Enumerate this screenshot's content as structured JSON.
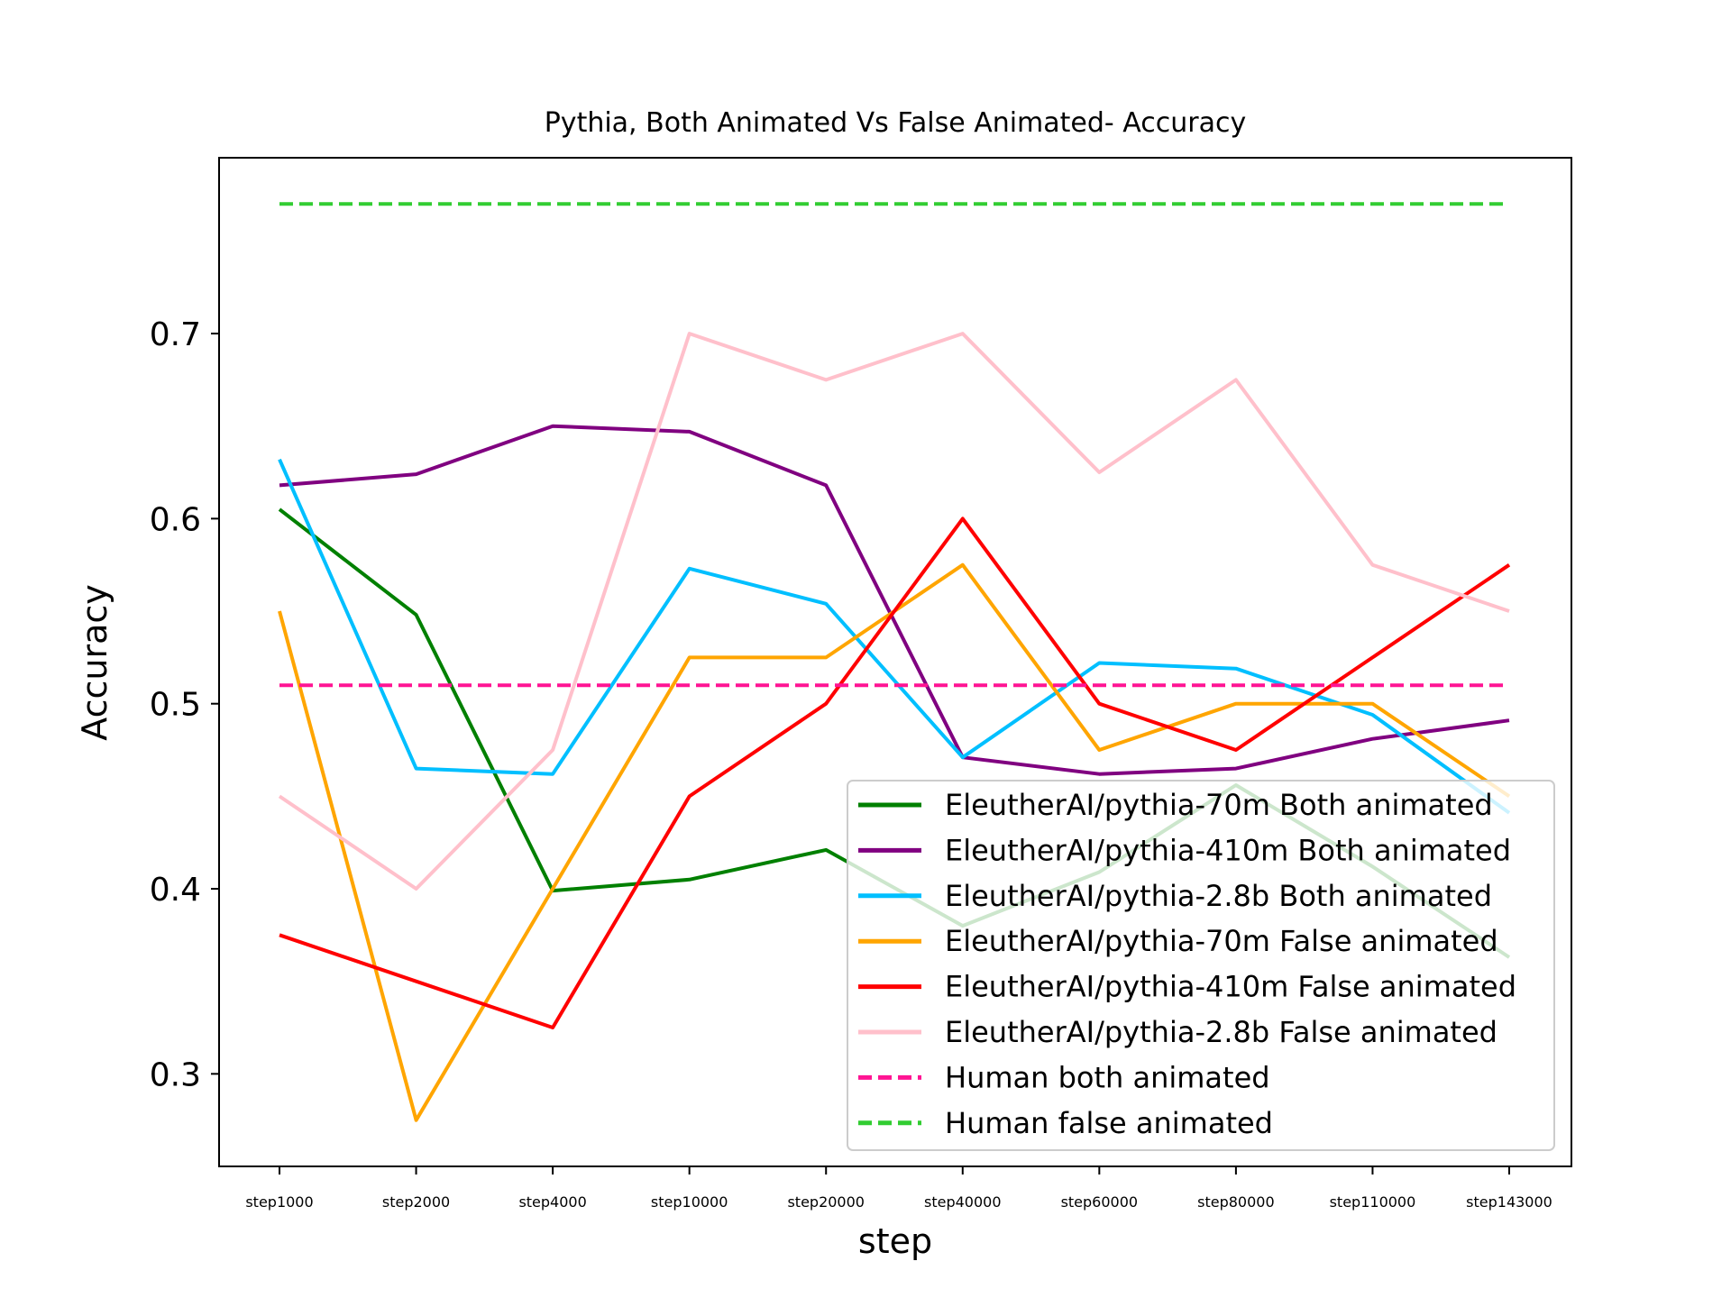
{
  "chart_data": {
    "type": "line",
    "title": "Pythia, Both Animated Vs False Animated- Accuracy",
    "xlabel": "step",
    "ylabel": "Accuracy",
    "categories": [
      "step1000",
      "step2000",
      "step4000",
      "step10000",
      "step20000",
      "step40000",
      "step60000",
      "step80000",
      "step110000",
      "step143000"
    ],
    "ylim": [
      0.25,
      0.795
    ],
    "yticks": [
      0.3,
      0.4,
      0.5,
      0.6,
      0.7
    ],
    "ytick_labels": [
      "0.3",
      "0.4",
      "0.5",
      "0.6",
      "0.7"
    ],
    "legend_position": "lower-right",
    "grid": false,
    "series": [
      {
        "name": "EleutherAI/pythia-70m Both animated",
        "color": "#008000",
        "dashed": false,
        "values": [
          0.605,
          0.548,
          0.399,
          0.405,
          0.421,
          0.38,
          0.409,
          0.456,
          0.412,
          0.363
        ]
      },
      {
        "name": "EleutherAI/pythia-410m Both animated",
        "color": "#800080",
        "dashed": false,
        "values": [
          0.618,
          0.624,
          0.65,
          0.647,
          0.618,
          0.471,
          0.462,
          0.465,
          0.481,
          0.491
        ]
      },
      {
        "name": "EleutherAI/pythia-2.8b Both animated",
        "color": "#00bfff",
        "dashed": false,
        "values": [
          0.632,
          0.465,
          0.462,
          0.573,
          0.554,
          0.471,
          0.522,
          0.519,
          0.494,
          0.441
        ]
      },
      {
        "name": "EleutherAI/pythia-70m False animated",
        "color": "#ffa500",
        "dashed": false,
        "values": [
          0.55,
          0.275,
          0.4,
          0.525,
          0.525,
          0.575,
          0.475,
          0.5,
          0.5,
          0.45
        ]
      },
      {
        "name": "EleutherAI/pythia-410m False animated",
        "color": "#ff0000",
        "dashed": false,
        "values": [
          0.375,
          0.35,
          0.325,
          0.45,
          0.5,
          0.6,
          0.5,
          0.475,
          0.525,
          0.575
        ]
      },
      {
        "name": "EleutherAI/pythia-2.8b False animated",
        "color": "#ffc0cb",
        "dashed": false,
        "values": [
          0.45,
          0.4,
          0.475,
          0.7,
          0.675,
          0.7,
          0.625,
          0.675,
          0.575,
          0.55
        ]
      },
      {
        "name": "Human both animated",
        "color": "#ff1493",
        "dashed": true,
        "values": [
          0.51,
          0.51,
          0.51,
          0.51,
          0.51,
          0.51,
          0.51,
          0.51,
          0.51,
          0.51
        ]
      },
      {
        "name": "Human false animated",
        "color": "#32cd32",
        "dashed": true,
        "values": [
          0.77,
          0.77,
          0.77,
          0.77,
          0.77,
          0.77,
          0.77,
          0.77,
          0.77,
          0.77
        ]
      }
    ]
  }
}
